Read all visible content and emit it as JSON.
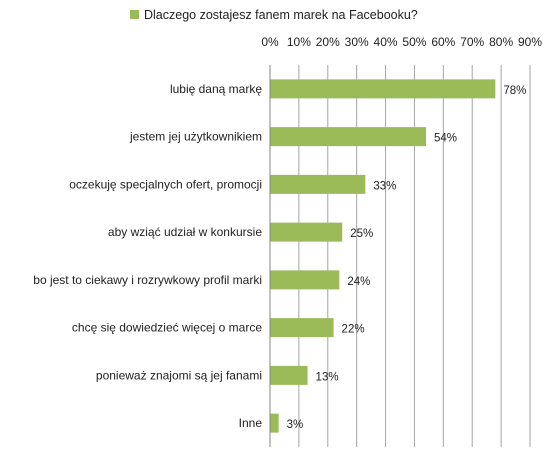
{
  "chart_data": {
    "type": "bar",
    "orientation": "horizontal",
    "legend_position": "top",
    "grid": true,
    "series": [
      {
        "name": "Dlaczego zostajesz fanem marek na Facebooku?",
        "color": "#9bbb59",
        "values": [
          78,
          54,
          33,
          25,
          24,
          22,
          13,
          3
        ]
      }
    ],
    "categories": [
      "lubię daną  markę",
      "jestem jej użytkownikiem",
      "oczekuję specjalnych ofert, promocji",
      "aby wziąć udział w konkursie",
      "bo jest to ciekawy i rozrywkowy profil marki",
      "chcę się dowiedzieć więcej o marce",
      "ponieważ znajomi są jej fanami",
      "Inne"
    ],
    "data_labels": [
      "78%",
      "54%",
      "33%",
      "25%",
      "24%",
      "22%",
      "13%",
      "3%"
    ],
    "xlim": [
      0,
      90
    ],
    "x_ticks": [
      "0%",
      "10%",
      "20%",
      "30%",
      "40%",
      "50%",
      "60%",
      "70%",
      "80%",
      "90%"
    ],
    "x_tick_values": [
      0,
      10,
      20,
      30,
      40,
      50,
      60,
      70,
      80,
      90
    ],
    "gridline_color": "#a6a6a6",
    "axis_color": "#868686"
  }
}
